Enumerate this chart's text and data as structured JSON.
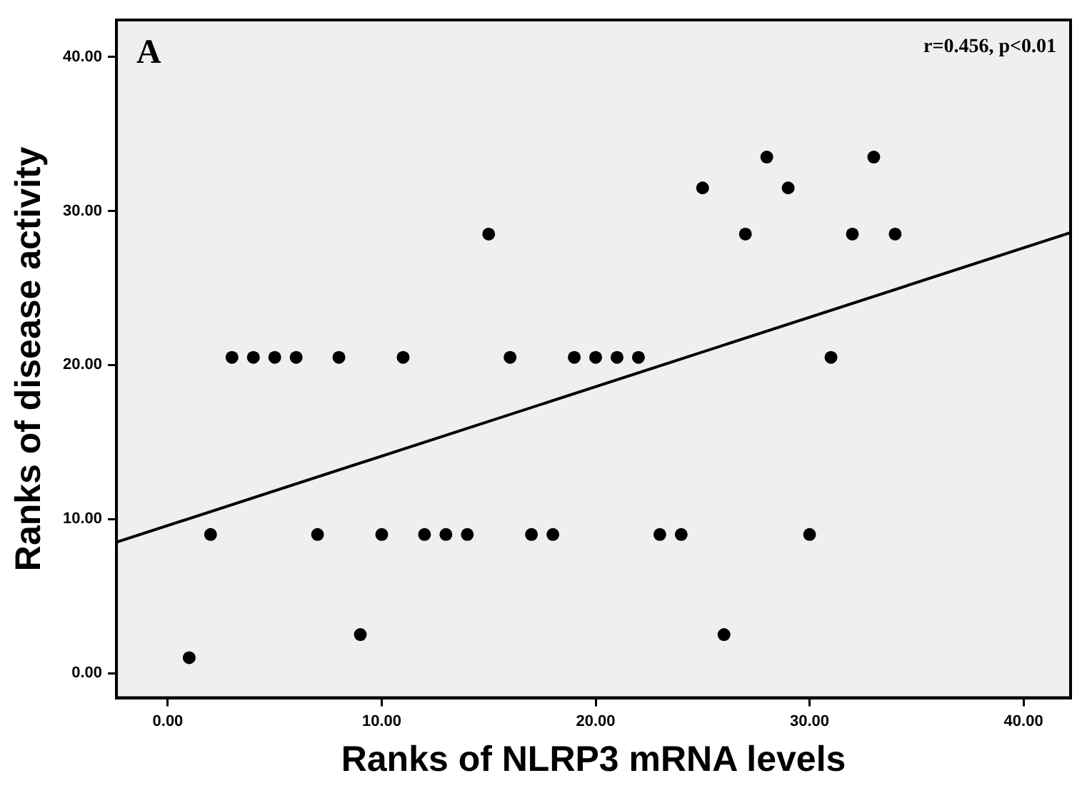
{
  "chart_data": {
    "type": "scatter",
    "xlabel": "Ranks of NLRP3 mRNA levels",
    "ylabel": "Ranks of disease activity",
    "annotations": [
      "A",
      "r=0.456, p<0.01"
    ],
    "xlim": [
      -2.4,
      42.2
    ],
    "ylim": [
      -1.6,
      42.4
    ],
    "xticks": [
      {
        "value": 0,
        "label": "0.00"
      },
      {
        "value": 10,
        "label": "10.00"
      },
      {
        "value": 20,
        "label": "20.00"
      },
      {
        "value": 30,
        "label": "30.00"
      },
      {
        "value": 40,
        "label": "40.00"
      }
    ],
    "yticks": [
      {
        "value": 0,
        "label": "0.00"
      },
      {
        "value": 10,
        "label": "10.00"
      },
      {
        "value": 20,
        "label": "20.00"
      },
      {
        "value": 30,
        "label": "30.00"
      },
      {
        "value": 40,
        "label": "40.00"
      }
    ],
    "grid": false,
    "legend": false,
    "marker": "circle",
    "series": [
      {
        "color": "#000000",
        "x": [
          1,
          2,
          3,
          4,
          5,
          6,
          7,
          8,
          9,
          10,
          11,
          12,
          13,
          14,
          15,
          16,
          17,
          18,
          19,
          20,
          21,
          22,
          23,
          24,
          25,
          26,
          27,
          28,
          29,
          30,
          31,
          32,
          33,
          34
        ],
        "values": [
          1,
          9,
          20.5,
          20.5,
          20.5,
          20.5,
          9,
          20.5,
          2.5,
          9,
          20.5,
          9,
          9,
          9,
          28.5,
          20.5,
          9,
          9,
          20.5,
          20.5,
          20.5,
          20.5,
          9,
          9,
          31.5,
          2.5,
          28.5,
          33.5,
          31.5,
          9,
          20.5,
          28.5,
          33.5,
          28.5
        ]
      },
      {
        "type": "line",
        "color": "#000000",
        "x": [
          -2.4,
          42.2
        ],
        "values": [
          8.5,
          28.6
        ],
        "marker": "none",
        "line_style": "solid"
      }
    ]
  }
}
